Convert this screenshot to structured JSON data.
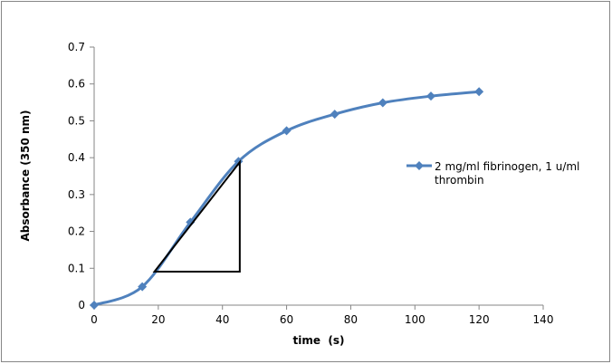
{
  "chart_data": {
    "type": "line",
    "title": "",
    "xlabel": "time  (s)",
    "ylabel": "Absorbance (350 nm)",
    "xlim": [
      0,
      140
    ],
    "ylim": [
      0,
      0.7
    ],
    "xticks": [
      "0",
      "20",
      "40",
      "60",
      "80",
      "100",
      "120",
      "140"
    ],
    "yticks": [
      "0",
      "0.1",
      "0.2",
      "0.3",
      "0.4",
      "0.5",
      "0.6",
      "0.7"
    ],
    "grid": false,
    "legend_position": "right",
    "series": [
      {
        "name": "2 mg/ml fibrinogen, 1 u/ml thrombin",
        "legend_lines": [
          "2 mg/ml fibrinogen, 1 u/ml",
          "thrombin"
        ],
        "color": "#4F81BD",
        "marker": "diamond",
        "smooth": true,
        "x": [
          0,
          15,
          30,
          45,
          60,
          75,
          90,
          105,
          120
        ],
        "y": [
          0.0,
          0.05,
          0.225,
          0.39,
          0.473,
          0.518,
          0.549,
          0.567,
          0.579
        ]
      }
    ],
    "annotation_triangle": {
      "color": "#000000",
      "points": [
        [
          18.8,
          0.091
        ],
        [
          45.4,
          0.388
        ],
        [
          45.4,
          0.091
        ]
      ]
    }
  }
}
